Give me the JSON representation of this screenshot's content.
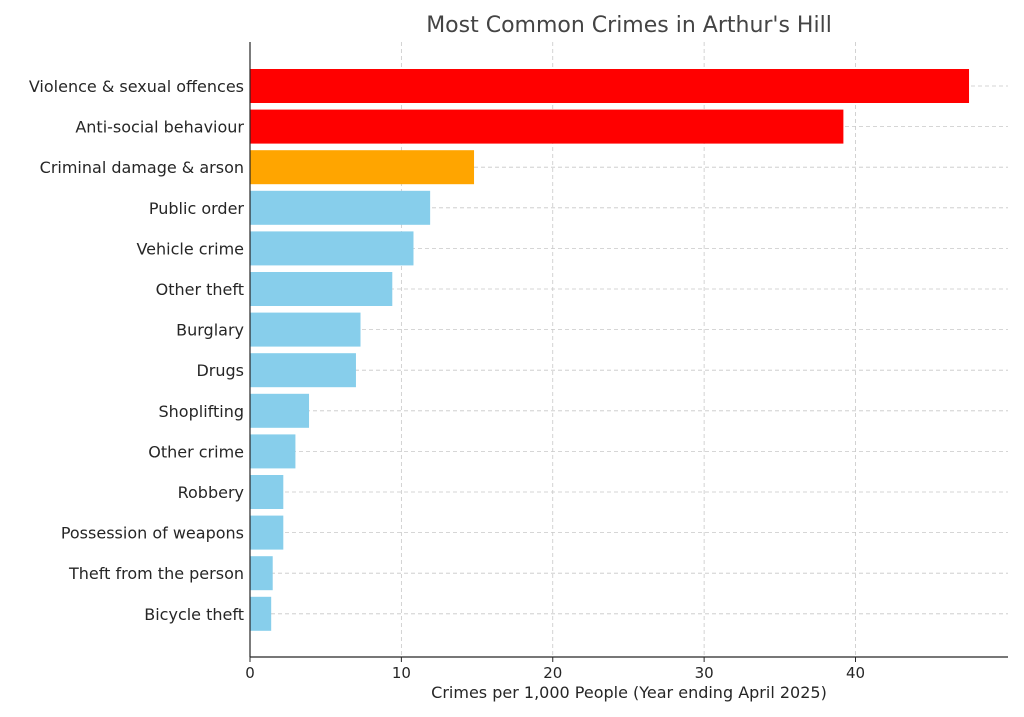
{
  "chart_data": {
    "type": "bar",
    "orientation": "horizontal",
    "title": "Most Common Crimes in Arthur's Hill",
    "xlabel": "Crimes per 1,000 People (Year ending April 2025)",
    "ylabel": "",
    "xlim": [
      0,
      50
    ],
    "xticks": [
      0,
      10,
      20,
      30,
      40
    ],
    "grid": true,
    "categories": [
      "Violence & sexual offences",
      "Anti-social behaviour",
      "Criminal damage & arson",
      "Public order",
      "Vehicle crime",
      "Other theft",
      "Burglary",
      "Drugs",
      "Shoplifting",
      "Other crime",
      "Robbery",
      "Possession of weapons",
      "Theft from the person",
      "Bicycle theft"
    ],
    "values": [
      47.5,
      39.2,
      14.8,
      11.9,
      10.8,
      9.4,
      7.3,
      7.0,
      3.9,
      3.0,
      2.2,
      2.2,
      1.5,
      1.4
    ],
    "colors": [
      "#ff0000",
      "#ff0000",
      "#ffa500",
      "#87ceeb",
      "#87ceeb",
      "#87ceeb",
      "#87ceeb",
      "#87ceeb",
      "#87ceeb",
      "#87ceeb",
      "#87ceeb",
      "#87ceeb",
      "#87ceeb",
      "#87ceeb"
    ]
  }
}
